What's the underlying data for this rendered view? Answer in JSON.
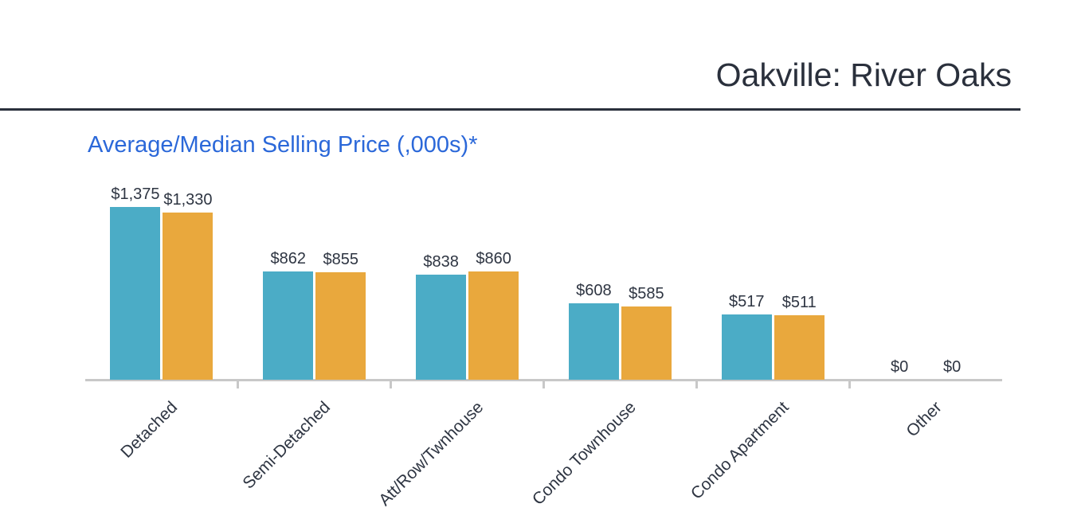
{
  "page": {
    "background": "#ffffff"
  },
  "header": {
    "title": "Oakville: River Oaks"
  },
  "chart": {
    "title": "Average/Median Selling Price (,000s)*"
  },
  "colors": {
    "ink": "#2e3542",
    "header_ink": "#2a303c",
    "title_blue": "#2b68d9",
    "axis_gray": "#c8c8c8",
    "average_bar": "#4bacc6",
    "median_bar": "#e9a83d"
  },
  "chart_data": {
    "type": "bar",
    "title": "Average/Median Selling Price (,000s)*",
    "categories": [
      "Detached",
      "Semi-Detached",
      "Att/Row/Twnhouse",
      "Condo Townhouse",
      "Condo Apartment",
      "Other"
    ],
    "series": [
      {
        "name": "Average",
        "color": "#4bacc6",
        "values": [
          1375,
          862,
          838,
          608,
          517,
          0
        ],
        "labels": [
          "$1,375",
          "$862",
          "$838",
          "$608",
          "$517",
          "$0"
        ]
      },
      {
        "name": "Median",
        "color": "#e9a83d",
        "values": [
          1330,
          855,
          860,
          585,
          511,
          0
        ],
        "labels": [
          "$1,330",
          "$855",
          "$860",
          "$585",
          "$511",
          "$0"
        ]
      }
    ],
    "xlabel": "",
    "ylabel": "",
    "ylim": [
      0,
      1375
    ],
    "grid": false,
    "legend_position": "none",
    "value_labels_shown": true,
    "x_tick_rotation_deg": -45
  }
}
